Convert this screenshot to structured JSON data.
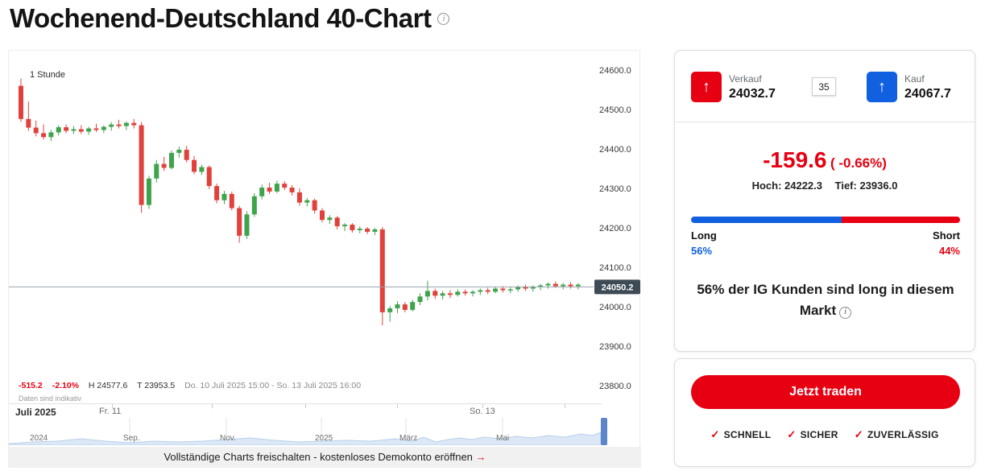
{
  "page": {
    "title": "Wochenend-Deutschland 40-Chart"
  },
  "icons": {
    "info": "i",
    "check": "✓",
    "arrow_up": "↑"
  },
  "colors": {
    "red": "#e60012",
    "blue": "#1160e0",
    "candle_up": "#3fa34d",
    "candle_down": "#e0413c",
    "badge_bg": "#3e4a56"
  },
  "chart": {
    "interval": "1 Stunde",
    "y_axis": [
      "24600.0",
      "24500.0",
      "24400.0",
      "24300.0",
      "24200.0",
      "24100.0",
      "24000.0",
      "23900.0",
      "23800.0"
    ],
    "price_badge": "24050.2",
    "stats": {
      "change": "-515.2",
      "change_pct": "-2.10%",
      "high": "H 24577.6",
      "low": "T 23953.5",
      "period": "Do. 10 Juli 2025 15:00 - So. 13 Juli 2025 16:00"
    },
    "disclaimer": "Daten sind indikativ",
    "x_axis": {
      "left_label": "Juli 2025",
      "ticks": [
        "Fr. 11",
        "So. 13"
      ]
    },
    "navigator_labels": [
      "2024",
      "Sep.",
      "Nov.",
      "2025",
      "März",
      "Mai"
    ],
    "banner": {
      "text": "Vollständige Charts freischalten - kostenloses Demokonto eröffnen",
      "arrow": "→"
    }
  },
  "chart_data": {
    "type": "candlestick",
    "title": "Wochenend-Deutschland 40, 1-Stunden-Kerzen",
    "y_range": [
      23800,
      24600
    ],
    "current_price": 24050.2,
    "session_high": 24577.6,
    "session_low": 23953.5,
    "session_change": -515.2,
    "session_change_pct": -2.1,
    "candles_ohlc": [
      [
        24560,
        24578,
        24468,
        24476
      ],
      [
        24476,
        24520,
        24446,
        24454
      ],
      [
        24454,
        24472,
        24432,
        24440
      ],
      [
        24440,
        24462,
        24424,
        24430
      ],
      [
        24430,
        24448,
        24420,
        24442
      ],
      [
        24442,
        24460,
        24434,
        24455
      ],
      [
        24455,
        24462,
        24440,
        24446
      ],
      [
        24446,
        24458,
        24438,
        24450
      ],
      [
        24450,
        24460,
        24438,
        24444
      ],
      [
        24444,
        24456,
        24436,
        24452
      ],
      [
        24452,
        24464,
        24443,
        24448
      ],
      [
        24448,
        24460,
        24440,
        24456
      ],
      [
        24456,
        24468,
        24446,
        24462
      ],
      [
        24462,
        24474,
        24452,
        24458
      ],
      [
        24458,
        24470,
        24448,
        24466
      ],
      [
        24466,
        24476,
        24452,
        24460
      ],
      [
        24460,
        24468,
        24238,
        24258
      ],
      [
        24258,
        24332,
        24248,
        24325
      ],
      [
        24325,
        24372,
        24315,
        24362
      ],
      [
        24362,
        24380,
        24344,
        24352
      ],
      [
        24352,
        24396,
        24348,
        24390
      ],
      [
        24390,
        24406,
        24378,
        24398
      ],
      [
        24398,
        24408,
        24366,
        24372
      ],
      [
        24372,
        24382,
        24336,
        24342
      ],
      [
        24342,
        24360,
        24334,
        24354
      ],
      [
        24354,
        24358,
        24298,
        24306
      ],
      [
        24306,
        24312,
        24262,
        24270
      ],
      [
        24270,
        24294,
        24260,
        24286
      ],
      [
        24286,
        24292,
        24244,
        24250
      ],
      [
        24250,
        24256,
        24162,
        24180
      ],
      [
        24180,
        24242,
        24172,
        24234
      ],
      [
        24234,
        24288,
        24228,
        24280
      ],
      [
        24280,
        24310,
        24272,
        24302
      ],
      [
        24302,
        24314,
        24286,
        24292
      ],
      [
        24292,
        24320,
        24288,
        24312
      ],
      [
        24312,
        24318,
        24296,
        24302
      ],
      [
        24302,
        24308,
        24282,
        24290
      ],
      [
        24290,
        24300,
        24256,
        24264
      ],
      [
        24264,
        24276,
        24254,
        24270
      ],
      [
        24270,
        24274,
        24236,
        24244
      ],
      [
        24244,
        24250,
        24214,
        24220
      ],
      [
        24220,
        24232,
        24210,
        24226
      ],
      [
        24226,
        24230,
        24196,
        24204
      ],
      [
        24204,
        24212,
        24192,
        24208
      ],
      [
        24208,
        24212,
        24188,
        24194
      ],
      [
        24194,
        24204,
        24186,
        24198
      ],
      [
        24198,
        24202,
        24184,
        24190
      ],
      [
        24190,
        24200,
        24182,
        24196
      ],
      [
        24196,
        24202,
        23953,
        23986
      ],
      [
        23986,
        24002,
        23962,
        23996
      ],
      [
        23996,
        24014,
        23984,
        24006
      ],
      [
        24006,
        24012,
        23986,
        23992
      ],
      [
        23992,
        24018,
        23988,
        24012
      ],
      [
        24012,
        24034,
        24004,
        24026
      ],
      [
        24026,
        24066,
        24016,
        24040
      ],
      [
        24040,
        24046,
        24020,
        24028
      ],
      [
        24028,
        24040,
        24018,
        24034
      ],
      [
        24034,
        24042,
        24022,
        24030
      ],
      [
        24030,
        24044,
        24026,
        24038
      ],
      [
        24038,
        24044,
        24028,
        24034
      ],
      [
        24034,
        24042,
        24026,
        24038
      ],
      [
        24038,
        24046,
        24030,
        24042
      ],
      [
        24042,
        24048,
        24032,
        24038
      ],
      [
        24038,
        24050,
        24034,
        24046
      ],
      [
        24046,
        24052,
        24036,
        24042
      ],
      [
        24042,
        24050,
        24034,
        24044
      ],
      [
        24044,
        24054,
        24038,
        24050
      ],
      [
        24050,
        24056,
        24040,
        24046
      ],
      [
        24046,
        24054,
        24038,
        24050
      ],
      [
        24050,
        24058,
        24042,
        24054
      ],
      [
        24054,
        24062,
        24046,
        24058
      ],
      [
        24058,
        24064,
        24048,
        24052
      ],
      [
        24052,
        24060,
        24044,
        24056
      ],
      [
        24056,
        24062,
        24046,
        24052
      ],
      [
        24052,
        24060,
        24044,
        24056
      ]
    ]
  },
  "ticket": {
    "sell": {
      "label": "Verkauf",
      "price": "24032.7"
    },
    "spread": "35",
    "buy": {
      "label": "Kauf",
      "price": "24067.7"
    },
    "change": "-159.6",
    "change_pct": "( -0.66%)",
    "high_label": "Hoch: 24222.3",
    "low_label": "Tief: 23936.0",
    "sentiment": {
      "long_label": "Long",
      "long_pct": "56%",
      "short_label": "Short",
      "short_pct": "44%",
      "long_value": 56,
      "short_value": 44,
      "text_prefix": "56% der IG Kunden sind ",
      "text_bold": "long",
      "text_suffix": " in diesem Markt"
    },
    "cta": "Jetzt traden",
    "features": [
      "SCHNELL",
      "SICHER",
      "ZUVERLÄSSIG"
    ]
  }
}
